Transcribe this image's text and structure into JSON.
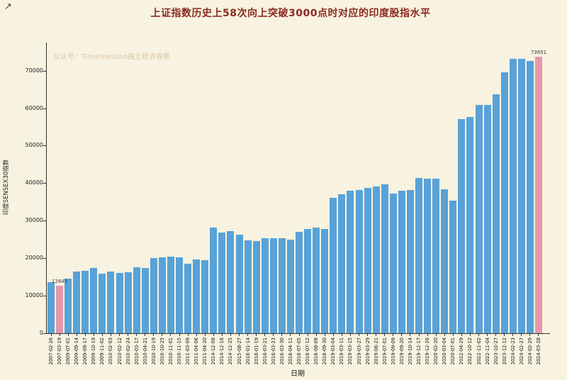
{
  "figure": {
    "watermark": "公众号：TimeHorizon独立经济观察",
    "cursor_glyph": "↗"
  },
  "colors": {
    "background": "#f8f2e0",
    "title": "#8b2a21",
    "watermark": "#d9c49f",
    "axis": "#333333",
    "bar_blue": "#58a2d8",
    "bar_pink": "#e598ac"
  },
  "chart_data": {
    "type": "bar",
    "title": "上证指数历史上58次向上突破3000点时对应的印度股指水平",
    "xlabel": "日期",
    "ylabel": "印度SENSEX30指数",
    "ylim": [
      0,
      77500
    ],
    "yticks": [
      0,
      10000,
      20000,
      30000,
      40000,
      50000,
      60000,
      70000
    ],
    "grid": false,
    "legend": "none",
    "bar_color_default": "#58a2d8",
    "highlight_color": "#e598ac",
    "highlighted_categories": [
      "2007-03-19",
      "2024-03-28"
    ],
    "categories": [
      "2007-02-26",
      "2007-03-19",
      "2009-07-01",
      "2009-09-14",
      "2009-09-17",
      "2009-10-19",
      "2009-11-02",
      "2010-02-03",
      "2010-02-12",
      "2010-02-24",
      "2010-03-17",
      "2010-04-21",
      "2010-10-19",
      "2010-10-25",
      "2010-11-01",
      "2010-11-15",
      "2011-03-09",
      "2011-04-06",
      "2011-04-20",
      "2014-12-08",
      "2014-12-16",
      "2014-12-25",
      "2015-08-27",
      "2016-01-14",
      "2016-01-19",
      "2016-03-21",
      "2016-03-23",
      "2016-03-30",
      "2016-04-11",
      "2016-07-05",
      "2016-07-12",
      "2016-08-08",
      "2016-09-30",
      "2019-03-04",
      "2019-03-11",
      "2019-03-15",
      "2019-03-27",
      "2019-03-29",
      "2019-06-21",
      "2019-07-01",
      "2019-09-09",
      "2019-09-20",
      "2019-10-14",
      "2019-12-17",
      "2019-12-26",
      "2020-02-20",
      "2020-03-04",
      "2020-07-01",
      "2022-04-29",
      "2022-10-12",
      "2022-11-02",
      "2022-11-04",
      "2023-10-27",
      "2023-12-12",
      "2024-02-23",
      "2024-02-27",
      "2024-02-29",
      "2024-03-28"
    ],
    "values": [
      13649,
      12645,
      14645,
      16454,
      16711,
      17326,
      15896,
      16496,
      16153,
      16256,
      17490,
      17473,
      19983,
      20303,
      20356,
      20310,
      18470,
      19612,
      19471,
      28119,
      26781,
      27209,
      26231,
      24772,
      24479,
      25285,
      25337,
      25339,
      24888,
      27085,
      27808,
      28182,
      27866,
      36063,
      37054,
      38024,
      38132,
      38673,
      39194,
      39686,
      37145,
      38015,
      38214,
      41352,
      41164,
      41170,
      38409,
      35414,
      57061,
      57626,
      60906,
      60950,
      63783,
      69551,
      73143,
      73095,
      72500,
      73651
    ],
    "annotations": [
      {
        "category": "2007-03-19",
        "text": "12645"
      },
      {
        "category": "2024-03-28",
        "text": "73651"
      }
    ]
  }
}
